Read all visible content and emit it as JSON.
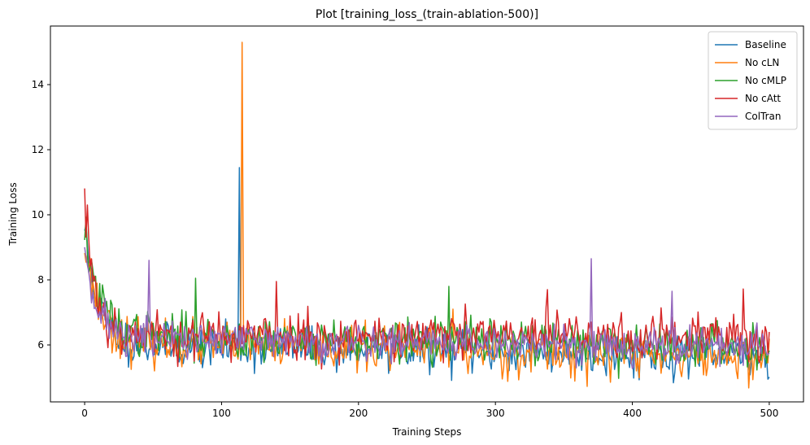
{
  "chart_data": {
    "type": "line",
    "title": "Plot [training_loss_(train-ablation-500)]",
    "xlabel": "Training Steps",
    "ylabel": "Training Loss",
    "xlim": [
      -25,
      525
    ],
    "ylim": [
      4.25,
      15.8
    ],
    "xticks": [
      "0",
      "100",
      "200",
      "300",
      "400",
      "500"
    ],
    "yticks": [
      "6",
      "8",
      "10",
      "12",
      "14"
    ],
    "grid": false,
    "legend_position": "top-right",
    "x": {
      "start": 0,
      "end": 500,
      "step": 1
    },
    "series": [
      {
        "name": "Baseline",
        "color": "#1f77b4",
        "seed": 11,
        "start": 9.6,
        "floor": 6.0,
        "decay": 10,
        "drift": 0.35,
        "noise": 0.32,
        "spikes": [
          {
            "x": 113,
            "y": 11.45
          }
        ]
      },
      {
        "name": "No cLN",
        "color": "#ff7f0e",
        "seed": 23,
        "start": 9.2,
        "floor": 6.1,
        "decay": 10,
        "drift": 0.5,
        "noise": 0.34,
        "spikes": [
          {
            "x": 115,
            "y": 15.3
          },
          {
            "x": 269,
            "y": 7.1
          }
        ]
      },
      {
        "name": "No cMLP",
        "color": "#2ca02c",
        "seed": 37,
        "start": 9.6,
        "floor": 6.3,
        "decay": 10,
        "drift": 0.35,
        "noise": 0.34,
        "spikes": [
          {
            "x": 81,
            "y": 8.05
          },
          {
            "x": 266,
            "y": 7.8
          }
        ]
      },
      {
        "name": "No cAtt",
        "color": "#d62728",
        "seed": 53,
        "start": 10.3,
        "floor": 6.3,
        "decay": 8,
        "drift": 0.05,
        "noise": 0.36,
        "spikes": [
          {
            "x": 2,
            "y": 10.3
          },
          {
            "x": 140,
            "y": 7.95
          },
          {
            "x": 338,
            "y": 7.7
          },
          {
            "x": 481,
            "y": 7.72
          }
        ]
      },
      {
        "name": "ColTran",
        "color": "#9467bd",
        "seed": 71,
        "start": 9.1,
        "floor": 6.2,
        "decay": 9,
        "drift": 0.25,
        "noise": 0.3,
        "spikes": [
          {
            "x": 47,
            "y": 8.6
          },
          {
            "x": 370,
            "y": 8.65
          },
          {
            "x": 429,
            "y": 7.65
          }
        ]
      }
    ]
  }
}
